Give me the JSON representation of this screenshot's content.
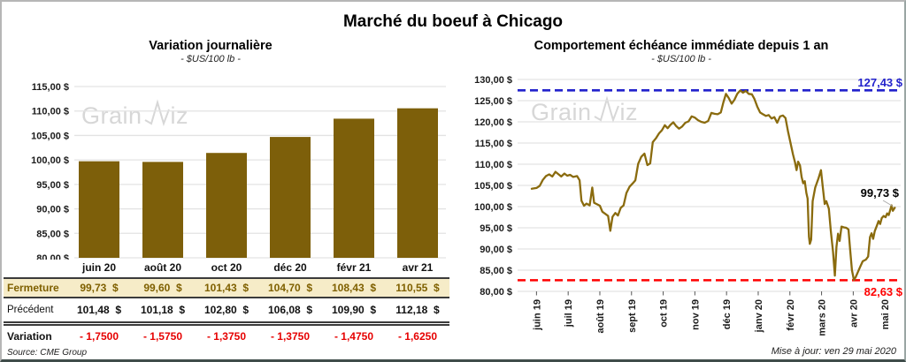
{
  "header": {
    "title": "Marché du boeuf à Chicago"
  },
  "watermark": {
    "part1": "Grain",
    "part2": "iz"
  },
  "chart_data": [
    {
      "id": "variation-journaliere",
      "type": "bar",
      "title": "Variation journalière",
      "subtitle": "- $US/100 lb -",
      "categories": [
        "juin 20",
        "août 20",
        "oct 20",
        "déc 20",
        "févr 21",
        "avr 21"
      ],
      "values": [
        99.73,
        99.6,
        101.43,
        104.7,
        108.43,
        110.55
      ],
      "ylim": [
        80,
        115
      ],
      "ytick_step": 5,
      "ytick_format": "fr-dollar",
      "grid": true,
      "bar_color": "#7D5F0A"
    },
    {
      "id": "comportement-echeance-immediate",
      "type": "line",
      "title": "Comportement échéance immédiate depuis 1 an",
      "subtitle": "- $US/100 lb -",
      "x_labels": [
        "juin 19",
        "juil 19",
        "août 19",
        "sept 19",
        "oct 19",
        "nov 19",
        "déc 19",
        "janv 20",
        "févr 20",
        "mars 20",
        "avr 20",
        "mai 20"
      ],
      "ylim": [
        80,
        130
      ],
      "ytick_step": 5,
      "grid": true,
      "line_color": "#8A6B0E",
      "max_line": {
        "value": 127.43,
        "label": "127,43 $",
        "color": "#2222CC"
      },
      "min_line": {
        "value": 82.63,
        "label": "82,63 $",
        "color": "#FF0000"
      },
      "last_point_label": "99,73 $",
      "series": [
        {
          "name": "échéance immédiate",
          "points": [
            [
              -0.15,
              104.2
            ],
            [
              0,
              104.4
            ],
            [
              0.1,
              104.9
            ],
            [
              0.2,
              106.3
            ],
            [
              0.3,
              107.2
            ],
            [
              0.4,
              107.6
            ],
            [
              0.5,
              107.1
            ],
            [
              0.6,
              108.2
            ],
            [
              0.7,
              107.6
            ],
            [
              0.78,
              107.1
            ],
            [
              0.88,
              107.8
            ],
            [
              0.97,
              107.3
            ],
            [
              1.06,
              107.5
            ],
            [
              1.16,
              107.0
            ],
            [
              1.28,
              107.2
            ],
            [
              1.36,
              106.2
            ],
            [
              1.42,
              101.4
            ],
            [
              1.5,
              100.2
            ],
            [
              1.58,
              100.7
            ],
            [
              1.68,
              100.3
            ],
            [
              1.76,
              104.5
            ],
            [
              1.82,
              100.9
            ],
            [
              1.9,
              100.6
            ],
            [
              2.0,
              100.2
            ],
            [
              2.08,
              98.8
            ],
            [
              2.17,
              98.3
            ],
            [
              2.26,
              97.8
            ],
            [
              2.33,
              94.3
            ],
            [
              2.4,
              97.6
            ],
            [
              2.49,
              98.5
            ],
            [
              2.57,
              97.9
            ],
            [
              2.66,
              99.7
            ],
            [
              2.75,
              100.3
            ],
            [
              2.84,
              103.2
            ],
            [
              2.94,
              104.7
            ],
            [
              3.04,
              105.5
            ],
            [
              3.12,
              106.2
            ],
            [
              3.21,
              110.1
            ],
            [
              3.31,
              111.8
            ],
            [
              3.41,
              112.5
            ],
            [
              3.5,
              109.8
            ],
            [
              3.59,
              110.2
            ],
            [
              3.67,
              115.2
            ],
            [
              3.77,
              116.1
            ],
            [
              3.87,
              117.3
            ],
            [
              3.96,
              118.0
            ],
            [
              4.05,
              119.2
            ],
            [
              4.14,
              118.5
            ],
            [
              4.23,
              119.3
            ],
            [
              4.32,
              119.9
            ],
            [
              4.41,
              119.0
            ],
            [
              4.5,
              118.4
            ],
            [
              4.6,
              118.9
            ],
            [
              4.7,
              119.8
            ],
            [
              4.8,
              120.1
            ],
            [
              4.9,
              121.3
            ],
            [
              5.0,
              121.0
            ],
            [
              5.1,
              120.4
            ],
            [
              5.2,
              120.0
            ],
            [
              5.31,
              119.8
            ],
            [
              5.42,
              120.2
            ],
            [
              5.52,
              122.1
            ],
            [
              5.62,
              121.9
            ],
            [
              5.72,
              121.8
            ],
            [
              5.82,
              122.2
            ],
            [
              5.9,
              124.6
            ],
            [
              5.98,
              126.6
            ],
            [
              6.07,
              125.6
            ],
            [
              6.16,
              124.3
            ],
            [
              6.25,
              125.2
            ],
            [
              6.34,
              126.6
            ],
            [
              6.43,
              127.4
            ],
            [
              6.52,
              126.9
            ],
            [
              6.61,
              127.3
            ],
            [
              6.7,
              126.6
            ],
            [
              6.8,
              126.5
            ],
            [
              6.88,
              125.4
            ],
            [
              6.97,
              123.6
            ],
            [
              7.06,
              122.2
            ],
            [
              7.15,
              121.8
            ],
            [
              7.24,
              121.4
            ],
            [
              7.33,
              121.6
            ],
            [
              7.42,
              120.8
            ],
            [
              7.51,
              121.1
            ],
            [
              7.6,
              119.8
            ],
            [
              7.69,
              121.3
            ],
            [
              7.78,
              121.5
            ],
            [
              7.86,
              120.9
            ],
            [
              7.94,
              117.8
            ],
            [
              8.02,
              115.0
            ],
            [
              8.1,
              112.3
            ],
            [
              8.16,
              110.5
            ],
            [
              8.21,
              108.6
            ],
            [
              8.26,
              110.6
            ],
            [
              8.32,
              109.7
            ],
            [
              8.37,
              107.0
            ],
            [
              8.42,
              105.5
            ],
            [
              8.47,
              106.0
            ],
            [
              8.52,
              103.2
            ],
            [
              8.56,
              101.9
            ],
            [
              8.6,
              92.9
            ],
            [
              8.63,
              91.2
            ],
            [
              8.67,
              92.2
            ],
            [
              8.72,
              101.3
            ],
            [
              8.8,
              104.5
            ],
            [
              8.9,
              106.6
            ],
            [
              8.98,
              108.6
            ],
            [
              9.04,
              104.5
            ],
            [
              9.1,
              100.6
            ],
            [
              9.15,
              101.3
            ],
            [
              9.23,
              99.5
            ],
            [
              9.29,
              94.3
            ],
            [
              9.36,
              89.4
            ],
            [
              9.42,
              83.7
            ],
            [
              9.47,
              90.5
            ],
            [
              9.52,
              93.6
            ],
            [
              9.57,
              91.9
            ],
            [
              9.63,
              95.3
            ],
            [
              9.7,
              95.1
            ],
            [
              9.78,
              95.0
            ],
            [
              9.85,
              94.6
            ],
            [
              9.9,
              90.0
            ],
            [
              9.96,
              85.0
            ],
            [
              10.02,
              82.7
            ],
            [
              10.08,
              83.4
            ],
            [
              10.15,
              84.6
            ],
            [
              10.22,
              85.8
            ],
            [
              10.3,
              87.1
            ],
            [
              10.4,
              87.5
            ],
            [
              10.47,
              88.2
            ],
            [
              10.53,
              92.8
            ],
            [
              10.58,
              93.7
            ],
            [
              10.63,
              92.4
            ],
            [
              10.68,
              94.2
            ],
            [
              10.74,
              95.4
            ],
            [
              10.8,
              96.6
            ],
            [
              10.85,
              95.9
            ],
            [
              10.9,
              97.3
            ],
            [
              10.96,
              97.8
            ],
            [
              11.02,
              97.5
            ],
            [
              11.07,
              98.4
            ],
            [
              11.12,
              98.0
            ],
            [
              11.17,
              99.3
            ],
            [
              11.21,
              100.3
            ],
            [
              11.25,
              99.0
            ],
            [
              11.31,
              99.73
            ]
          ]
        }
      ]
    }
  ],
  "table": {
    "columns": [
      "juin 20",
      "août 20",
      "oct 20",
      "déc 20",
      "févr 21",
      "avr 21"
    ],
    "rows": [
      {
        "id": "fermeture",
        "label": "Fermeture",
        "values": [
          "99,73  $",
          "99,60  $",
          "101,43  $",
          "104,70  $",
          "108,43  $",
          "110,55  $"
        ]
      },
      {
        "id": "precedent",
        "label": "Précédent",
        "values": [
          "101,48  $",
          "101,18  $",
          "102,80  $",
          "106,08  $",
          "109,90  $",
          "112,18  $"
        ]
      },
      {
        "id": "variation",
        "label": "Variation",
        "values": [
          "- 1,7500",
          "- 1,5750",
          "- 1,3750",
          "- 1,3750",
          "- 1,4750",
          "- 1,6250"
        ]
      }
    ]
  },
  "footer": {
    "source": "Source: CME Group",
    "updated": "Mise à jour: ven 29 mai 2020"
  }
}
